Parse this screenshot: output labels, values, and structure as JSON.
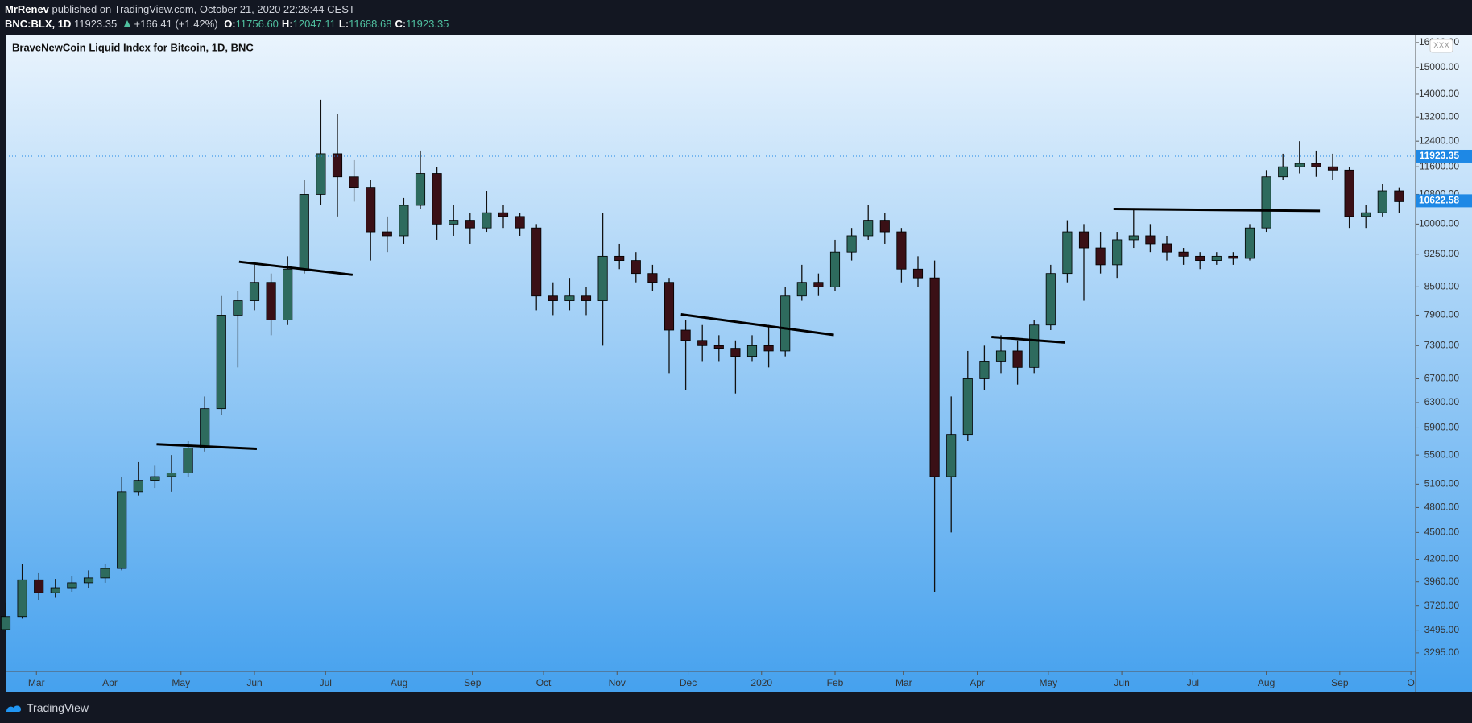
{
  "header": {
    "author": "MrRenev",
    "published": "published on TradingView.com, October 21, 2020 22:28:44 CEST",
    "symbol": "BNC:BLX, 1D",
    "price": "11923.35",
    "change": "+166.41 (+1.42%)",
    "ohlc": [
      {
        "label": "O:",
        "value": "11756.60"
      },
      {
        "label": "H:",
        "value": "12047.11"
      },
      {
        "label": "L:",
        "value": "11688.68"
      },
      {
        "label": "C:",
        "value": "11923.35"
      }
    ]
  },
  "badge": "XXX",
  "footer": {
    "brand": "TradingView"
  },
  "chart_data": {
    "type": "candlestick",
    "title": "BraveNewCoin Liquid Index for Bitcoin, 1D, BNC",
    "log_scale": true,
    "grid": false,
    "up_color": "#2e6b5e",
    "down_color": "#3a1016",
    "wick_color": "#111111",
    "x": [
      0,
      7,
      14,
      21,
      28,
      35,
      42,
      49,
      56,
      63,
      70,
      77,
      84,
      91,
      98,
      105,
      112,
      119,
      126,
      133,
      140,
      147,
      154,
      161,
      168,
      175,
      182,
      189,
      196,
      203,
      210,
      217,
      224,
      231,
      238,
      245,
      252,
      259,
      266,
      273,
      280,
      287,
      294,
      301,
      308,
      315,
      322,
      329,
      336,
      343,
      350,
      357,
      364,
      371,
      378,
      385,
      392,
      399,
      406,
      413,
      420,
      427,
      434,
      441,
      448,
      455,
      462,
      469,
      476,
      483,
      490,
      497,
      504,
      511,
      518,
      525,
      532,
      539,
      546,
      553,
      560,
      567,
      574,
      581,
      588
    ],
    "open": [
      3500,
      3620,
      3980,
      3850,
      3900,
      3950,
      4000,
      4100,
      5000,
      5150,
      5200,
      5250,
      5600,
      6200,
      7900,
      8200,
      8600,
      7800,
      8900,
      10800,
      12000,
      11300,
      11000,
      9800,
      9700,
      10500,
      11400,
      10000,
      10100,
      9900,
      10300,
      10200,
      9900,
      8300,
      8200,
      8300,
      8200,
      9200,
      9100,
      8800,
      8600,
      7600,
      7400,
      7300,
      7250,
      7100,
      7300,
      7200,
      8300,
      8600,
      8500,
      9300,
      9700,
      10100,
      9800,
      8900,
      8700,
      5200,
      5800,
      6700,
      7000,
      7200,
      6900,
      7700,
      8800,
      9800,
      9400,
      9000,
      9600,
      9700,
      9500,
      9300,
      9200,
      9100,
      9200,
      9150,
      9900,
      11300,
      11600,
      11700,
      11600,
      11500,
      10200,
      10300,
      10900
    ],
    "high": [
      3750,
      4150,
      4050,
      3990,
      4020,
      4080,
      4150,
      5200,
      5400,
      5350,
      5500,
      5700,
      6400,
      8300,
      8400,
      9000,
      8800,
      9200,
      11200,
      13800,
      13300,
      11800,
      11200,
      10200,
      10700,
      12100,
      11600,
      10500,
      10300,
      10900,
      10500,
      10300,
      10000,
      8600,
      8700,
      8500,
      10300,
      9500,
      9300,
      9000,
      8700,
      7800,
      7700,
      7500,
      7400,
      7500,
      7700,
      8500,
      9000,
      8800,
      9600,
      9900,
      10500,
      10300,
      9900,
      9200,
      9100,
      6400,
      7200,
      7300,
      7500,
      7400,
      7800,
      9000,
      10100,
      10000,
      9800,
      9800,
      10400,
      10000,
      9700,
      9400,
      9300,
      9300,
      9300,
      10000,
      11500,
      12000,
      12400,
      12100,
      12000,
      11600,
      10500,
      11100,
      11000
    ],
    "low": [
      3480,
      3600,
      3780,
      3800,
      3860,
      3900,
      3950,
      4080,
      4950,
      5050,
      5000,
      5200,
      5550,
      6100,
      6900,
      8000,
      7500,
      7700,
      8800,
      10500,
      10200,
      10600,
      9100,
      9300,
      9500,
      10400,
      9600,
      9700,
      9500,
      9800,
      9900,
      9700,
      8000,
      7900,
      8000,
      7900,
      7300,
      8900,
      8600,
      8400,
      6800,
      6500,
      7000,
      7000,
      6450,
      7000,
      6900,
      7100,
      8200,
      8300,
      8400,
      9100,
      9600,
      9500,
      8600,
      8500,
      3860,
      4500,
      5700,
      6500,
      6800,
      6600,
      6800,
      7600,
      8600,
      8200,
      8800,
      8700,
      9400,
      9300,
      9100,
      9000,
      8900,
      9000,
      9000,
      9100,
      9800,
      11200,
      11400,
      11300,
      11200,
      9900,
      9900,
      10200,
      10300
    ],
    "close": [
      3620,
      3980,
      3850,
      3900,
      3950,
      4000,
      4100,
      5000,
      5150,
      5200,
      5250,
      5600,
      6200,
      7900,
      8200,
      8600,
      7800,
      8900,
      10800,
      12000,
      11300,
      11000,
      9800,
      9700,
      10500,
      11400,
      10000,
      10100,
      9900,
      10300,
      10200,
      9900,
      8300,
      8200,
      8300,
      8200,
      9200,
      9100,
      8800,
      8600,
      7600,
      7400,
      7300,
      7250,
      7100,
      7300,
      7200,
      8300,
      8600,
      8500,
      9300,
      9700,
      10100,
      9800,
      8900,
      8700,
      5200,
      5800,
      6700,
      7000,
      7200,
      6900,
      7700,
      8800,
      9800,
      9400,
      9000,
      9600,
      9700,
      9500,
      9300,
      9200,
      9100,
      9200,
      9150,
      9900,
      11300,
      11600,
      11700,
      11600,
      11500,
      10200,
      10300,
      10900,
      10600
    ],
    "trendlines": [
      {
        "x": [
          63.7,
          106
        ],
        "y": [
          5656,
          5588
        ]
      },
      {
        "x": [
          98.5,
          146.4
        ],
        "y": [
          9070,
          8770
        ]
      },
      {
        "x": [
          285,
          349.5
        ],
        "y": [
          7915,
          7505
        ]
      },
      {
        "x": [
          416,
          447
        ],
        "y": [
          7466,
          7360
        ]
      },
      {
        "x": [
          467.5,
          554.6
        ],
        "y": [
          10400,
          10350
        ]
      }
    ],
    "price_tags": [
      {
        "value": 11923.35,
        "color": "#1e88e5",
        "dotted": true
      },
      {
        "value": 10622.58,
        "color": "#1e88e5",
        "dotted": false
      }
    ],
    "xlim": [
      0,
      595
    ],
    "ylim": [
      3140,
      16300
    ],
    "xticks": [
      {
        "value": 13,
        "label": "Mar"
      },
      {
        "value": 44,
        "label": "Apr"
      },
      {
        "value": 74,
        "label": "May"
      },
      {
        "value": 105,
        "label": "Jun"
      },
      {
        "value": 135,
        "label": "Jul"
      },
      {
        "value": 166,
        "label": "Aug"
      },
      {
        "value": 197,
        "label": "Sep"
      },
      {
        "value": 227,
        "label": "Oct"
      },
      {
        "value": 258,
        "label": "Nov"
      },
      {
        "value": 288,
        "label": "Dec"
      },
      {
        "value": 319,
        "label": "2020"
      },
      {
        "value": 350,
        "label": "Feb"
      },
      {
        "value": 379,
        "label": "Mar"
      },
      {
        "value": 410,
        "label": "Apr"
      },
      {
        "value": 440,
        "label": "May"
      },
      {
        "value": 471,
        "label": "Jun"
      },
      {
        "value": 501,
        "label": "Jul"
      },
      {
        "value": 532,
        "label": "Aug"
      },
      {
        "value": 563,
        "label": "Sep"
      },
      {
        "value": 593,
        "label": "O"
      }
    ],
    "yticks": [
      {
        "value": 3295,
        "label": "3295.00"
      },
      {
        "value": 3495,
        "label": "3495.00"
      },
      {
        "value": 3720,
        "label": "3720.00"
      },
      {
        "value": 3960,
        "label": "3960.00"
      },
      {
        "value": 4200,
        "label": "4200.00"
      },
      {
        "value": 4500,
        "label": "4500.00"
      },
      {
        "value": 4800,
        "label": "4800.00"
      },
      {
        "value": 5100,
        "label": "5100.00"
      },
      {
        "value": 5500,
        "label": "5500.00"
      },
      {
        "value": 5900,
        "label": "5900.00"
      },
      {
        "value": 6300,
        "label": "6300.00"
      },
      {
        "value": 6700,
        "label": "6700.00"
      },
      {
        "value": 7300,
        "label": "7300.00"
      },
      {
        "value": 7900,
        "label": "7900.00"
      },
      {
        "value": 8500,
        "label": "8500.00"
      },
      {
        "value": 9250,
        "label": "9250.00"
      },
      {
        "value": 10000,
        "label": "10000.00"
      },
      {
        "value": 10800,
        "label": "10800.00"
      },
      {
        "value": 11600,
        "label": "11600.00"
      },
      {
        "value": 12400,
        "label": "12400.00"
      },
      {
        "value": 13200,
        "label": "13200.00"
      },
      {
        "value": 14000,
        "label": "14000.00"
      },
      {
        "value": 15000,
        "label": "15000.00"
      },
      {
        "value": 16000,
        "label": "16000.00"
      }
    ]
  }
}
